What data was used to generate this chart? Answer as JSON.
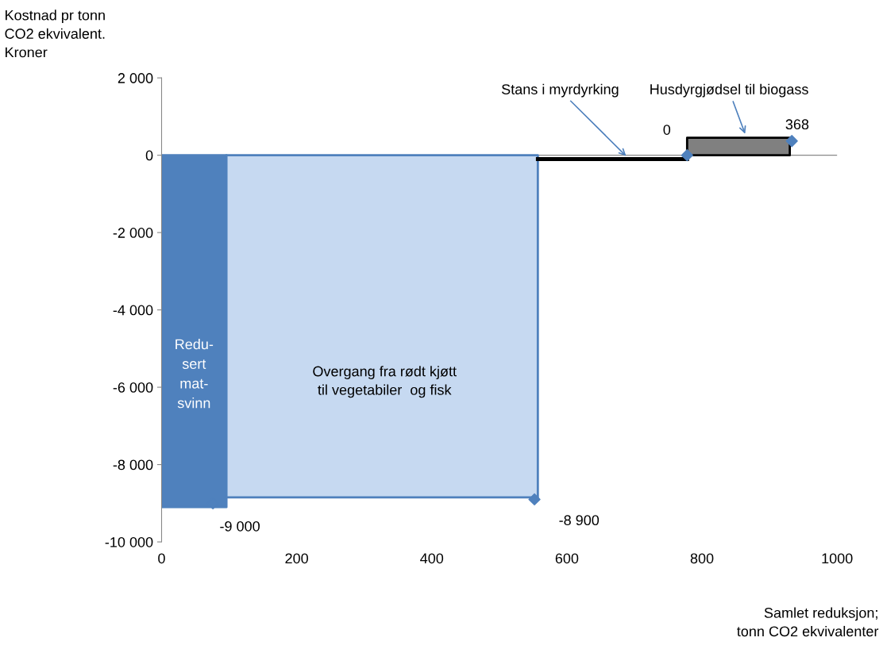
{
  "chart_data": {
    "type": "area",
    "ylabel": "Kostnad pr tonn\nCO2 ekvivalent.\nKroner",
    "xlabel": "Samlet reduksjon;\ntonn CO2 ekvivalenter",
    "xlim": [
      0,
      1000
    ],
    "xticks": [
      0,
      200,
      400,
      600,
      800,
      1000
    ],
    "ylim": [
      -10000,
      2000
    ],
    "yticks": [
      {
        "value": -10000,
        "label": "-10 000"
      },
      {
        "value": -8000,
        "label": "-8 000"
      },
      {
        "value": -6000,
        "label": "-6 000"
      },
      {
        "value": -4000,
        "label": "-4 000"
      },
      {
        "value": -2000,
        "label": "-2 000"
      },
      0,
      {
        "value": 2000,
        "label": "2 000"
      }
    ],
    "grid": false,
    "ref_lines": [
      {
        "axis": "y",
        "value": 0,
        "color": "#888888"
      }
    ],
    "series": [
      {
        "color": "#4f81bd",
        "x": [
          0,
          96
        ],
        "values": [
          -9100,
          -9100
        ]
      },
      {
        "color": "#c6d9f1",
        "x": [
          96,
          557
        ],
        "values": [
          -8850,
          -8850
        ]
      },
      {
        "type": "line",
        "color": "#000000",
        "x": [
          557,
          778
        ],
        "values": [
          -100,
          -100
        ]
      },
      {
        "color": "#808080",
        "x": [
          778,
          930
        ],
        "values": [
          450,
          450
        ]
      },
      {
        "type": "scatter",
        "color": "#4f81bd",
        "marker": "diamond",
        "x": [
          76,
          552,
          778,
          933
        ],
        "values": [
          -9000,
          -8900,
          0,
          368
        ],
        "value_labels": [
          "-9 000",
          "-8 900",
          "0",
          "368"
        ]
      }
    ],
    "annotations": [
      "Redu-\nsert\nmat-\nsvinn",
      "Overgang fra rødt kjøtt\ntil vegetabiler  og fisk",
      {
        "text": "Stans i myrdyrking",
        "x": 690,
        "y": -60
      },
      {
        "text": "Husdyrgjødsel til biogass",
        "x": 865,
        "y": 500
      }
    ]
  }
}
